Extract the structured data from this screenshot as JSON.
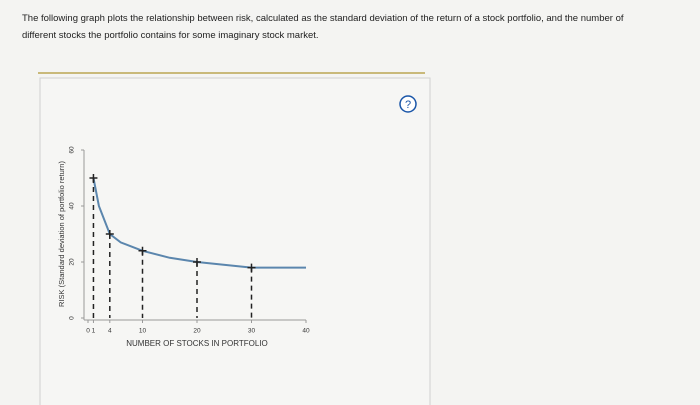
{
  "question": {
    "line1": "The following graph plots the relationship between risk, calculated as the standard deviation of the return of a stock portfolio, and the number of",
    "line2": "different stocks the portfolio contains for some imaginary stock market."
  },
  "help_icon": "?",
  "chart_data": {
    "type": "line",
    "xlabel": "NUMBER OF STOCKS IN PORTFOLIO",
    "ylabel": "RISK (Standard deviation of portfolio return)",
    "xlim": [
      0,
      40
    ],
    "xticks": [
      0,
      1,
      4,
      10,
      20,
      30,
      40
    ],
    "ylim": [
      0,
      60
    ],
    "yticks": [
      0,
      20,
      40,
      60
    ],
    "series": [
      {
        "color": "#5b86ad",
        "x": [
          1,
          2,
          4,
          6,
          10,
          15,
          20,
          30,
          40
        ],
        "values": [
          50,
          40,
          30,
          27,
          24,
          21.5,
          20,
          18,
          18
        ]
      }
    ],
    "points": {
      "color": "#222222",
      "x": [
        1,
        4,
        10,
        20,
        30
      ],
      "values": [
        50,
        30,
        24,
        20,
        18
      ]
    }
  }
}
